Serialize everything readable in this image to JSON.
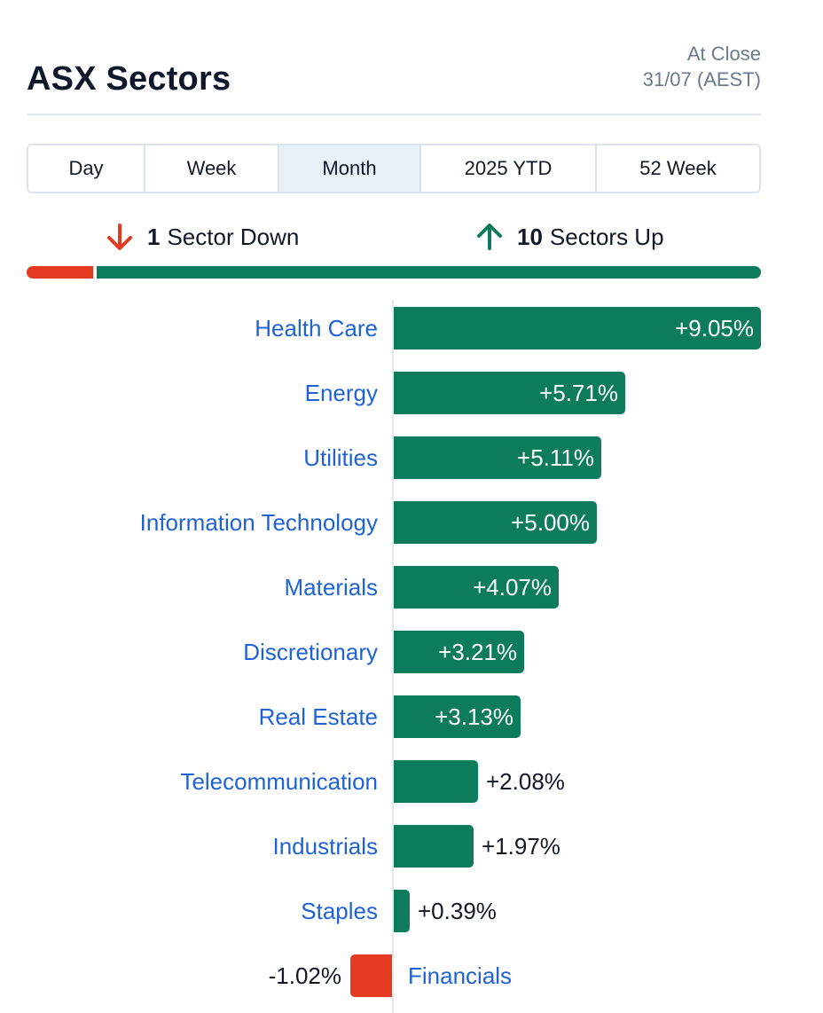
{
  "header": {
    "title": "ASX Sectors",
    "status_line1": "At Close",
    "status_line2": "31/07 (AEST)"
  },
  "tabs": [
    {
      "label": "Day",
      "active": false
    },
    {
      "label": "Week",
      "active": false
    },
    {
      "label": "Month",
      "active": true
    },
    {
      "label": "2025 YTD",
      "active": false
    },
    {
      "label": "52 Week",
      "active": false
    }
  ],
  "summary": {
    "down_count": "1",
    "down_text": "Sector Down",
    "up_count": "10",
    "up_text": "Sectors Up",
    "down_icon": "arrow-down-icon",
    "up_icon": "arrow-up-icon"
  },
  "colors": {
    "positive": "#0c7c5c",
    "negative": "#e53a22",
    "link": "#1f62d6",
    "active_tab": "#e8f0f8"
  },
  "sectors": [
    {
      "name": "Health Care",
      "value": 9.05,
      "display": "+9.05%"
    },
    {
      "name": "Energy",
      "value": 5.71,
      "display": "+5.71%"
    },
    {
      "name": "Utilities",
      "value": 5.11,
      "display": "+5.11%"
    },
    {
      "name": "Information Technology",
      "value": 5.0,
      "display": "+5.00%"
    },
    {
      "name": "Materials",
      "value": 4.07,
      "display": "+4.07%"
    },
    {
      "name": "Discretionary",
      "value": 3.21,
      "display": "+3.21%"
    },
    {
      "name": "Real Estate",
      "value": 3.13,
      "display": "+3.13%"
    },
    {
      "name": "Telecommunication",
      "value": 2.08,
      "display": "+2.08%"
    },
    {
      "name": "Industrials",
      "value": 1.97,
      "display": "+1.97%"
    },
    {
      "name": "Staples",
      "value": 0.39,
      "display": "+0.39%"
    },
    {
      "name": "Financials",
      "value": -1.02,
      "display": "-1.02%"
    }
  ]
}
